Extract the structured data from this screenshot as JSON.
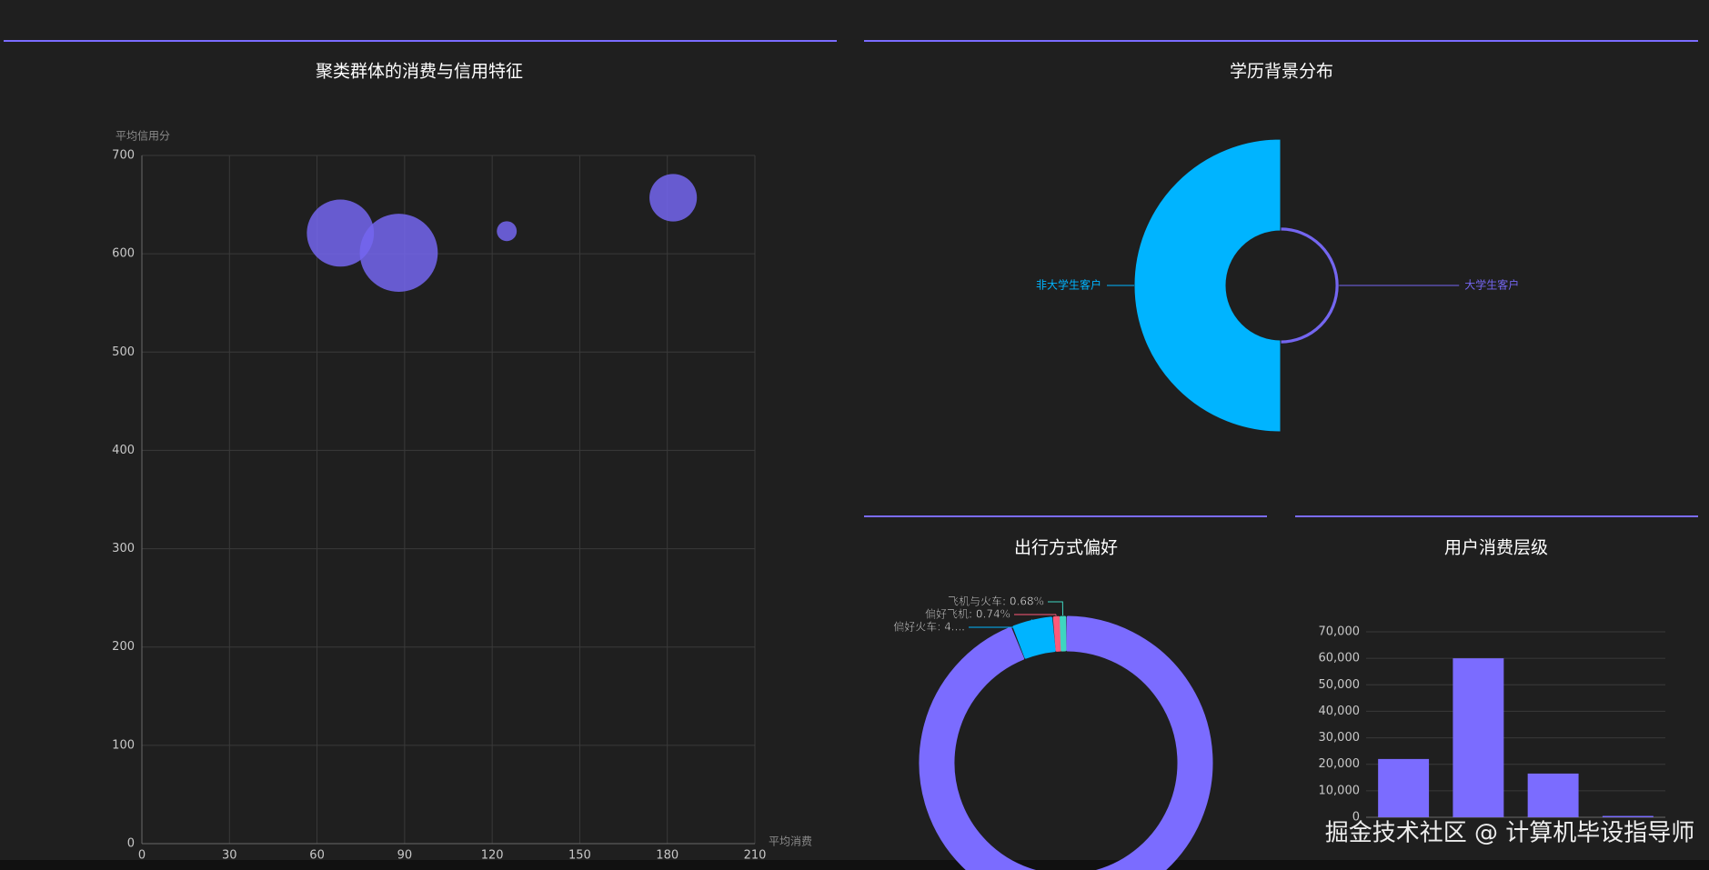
{
  "chart_data": [
    {
      "type": "scatter",
      "title": "聚类群体的消费与信用特征",
      "x_label": "平均消费",
      "y_label": "平均信用分",
      "x": [
        68,
        88,
        125,
        182
      ],
      "values": [
        621,
        601,
        623,
        657
      ],
      "sizes": [
        34000,
        46000,
        3000,
        17000
      ],
      "color": "#7466f0",
      "xlim": [
        0,
        210
      ],
      "xticks": [
        0,
        30,
        60,
        90,
        120,
        150,
        180,
        210
      ],
      "ylim": [
        0,
        700
      ],
      "yticks": [
        0,
        100,
        200,
        300,
        400,
        500,
        600,
        700
      ],
      "grid": true
    },
    {
      "type": "rose",
      "title": "学历背景分布",
      "categories": [
        "非大学生客户",
        "大学生客户"
      ],
      "values": [
        95500,
        4000
      ],
      "colors": [
        "#00b4ff",
        "#7466f0"
      ]
    },
    {
      "type": "donut",
      "title": "出行方式偏好",
      "values": [
        93.98,
        4.6,
        0.74,
        0.68
      ],
      "value_labels": [
        null,
        "偏好火车: 4....",
        "偏好飞机: 0.74%",
        "飞机与火车: 0.68%"
      ],
      "colors": [
        "#7b6cff",
        "#00b4ff",
        "#ff5a7a",
        "#3fd5c0"
      ]
    },
    {
      "type": "bar",
      "title": "用户消费层级",
      "categories": [
        null,
        null,
        null,
        null
      ],
      "values": [
        22000,
        60000,
        16500,
        500
      ],
      "color": "#7b6cff",
      "ylim": [
        0,
        70000
      ],
      "yticks": [
        0,
        {
          "value": 10000,
          "label": "10,000"
        },
        {
          "value": 20000,
          "label": "20,000"
        },
        {
          "value": 30000,
          "label": "30,000"
        },
        {
          "value": 40000,
          "label": "40,000"
        },
        {
          "value": 50000,
          "label": "50,000"
        },
        {
          "value": 60000,
          "label": "60,000"
        },
        {
          "value": 70000,
          "label": "70,000"
        }
      ],
      "grid": true
    }
  ],
  "watermark": "掘金技术社区 @ 计算机毕设指导师"
}
